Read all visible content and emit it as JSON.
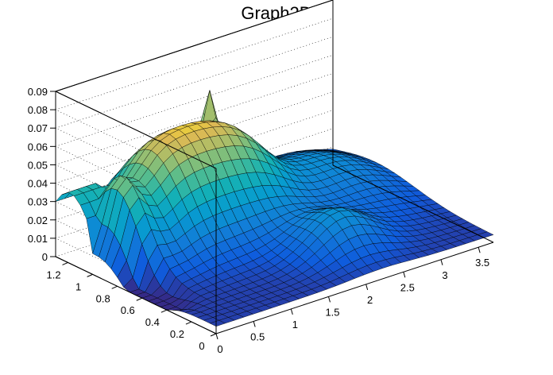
{
  "chart_data": {
    "type": "surface",
    "title": "Graph2D",
    "xlabel": "",
    "ylabel": "",
    "zlabel": "",
    "x_ticks": [
      "0",
      "0.5",
      "1",
      "1.5",
      "2",
      "2.5",
      "3",
      "3.5"
    ],
    "y_ticks": [
      "0",
      "0.2",
      "0.4",
      "0.6",
      "0.8",
      "1",
      "1.2"
    ],
    "z_ticks": [
      "0",
      "0.01",
      "0.02",
      "0.03",
      "0.04",
      "0.05",
      "0.06",
      "0.07",
      "0.08",
      "0.09"
    ],
    "xlim": [
      0,
      3.7
    ],
    "ylim": [
      0,
      1.3
    ],
    "zlim": [
      0,
      0.09
    ],
    "grid": true,
    "colormap": "parula",
    "colors": {
      "low": "#3a4fd6",
      "mid": "#20b39a",
      "high": "#f6e020"
    },
    "grid_resolution": {
      "nx": 30,
      "ny": 26
    },
    "peaks": [
      {
        "x": 0.65,
        "y": 1.15,
        "z": 0.057
      },
      {
        "x": 2.0,
        "y": 1.25,
        "z": 0.063
      }
    ]
  }
}
